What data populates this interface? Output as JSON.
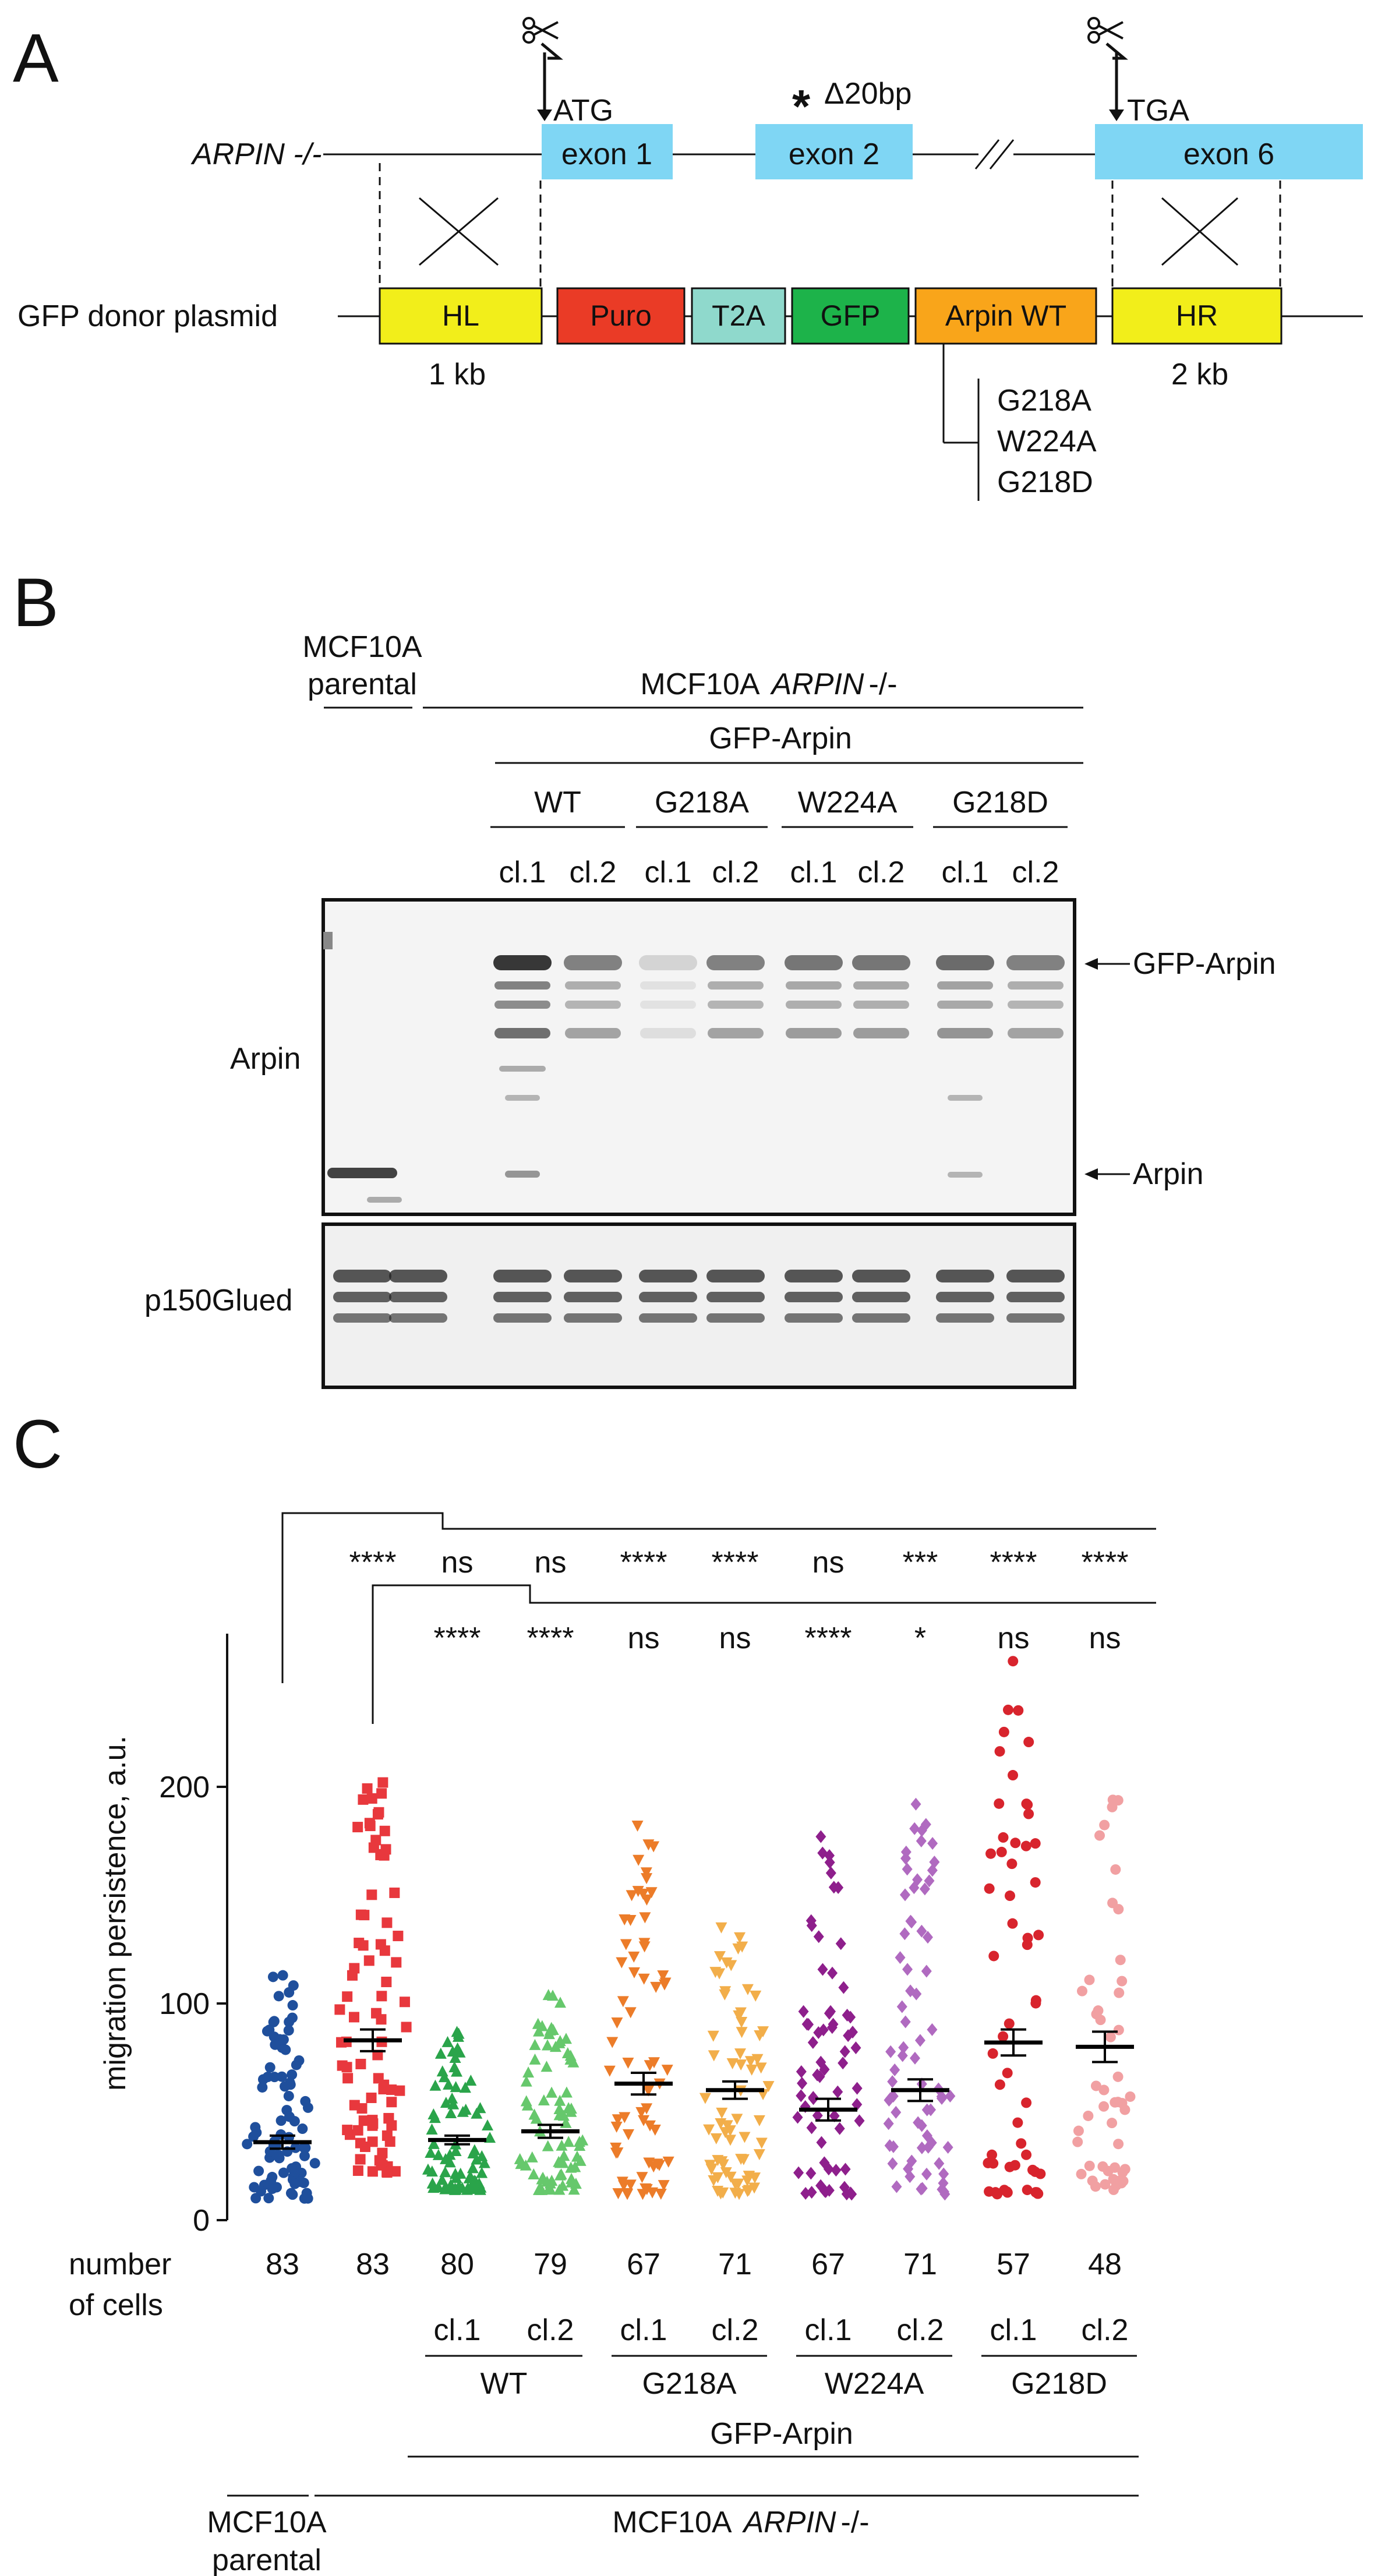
{
  "panels": {
    "a": "A",
    "b": "B",
    "c": "C"
  },
  "panel_a": {
    "gene_label": "ARPIN",
    "gene_suffix": "-/-",
    "atg": "ATG",
    "deletion": "Δ20bp",
    "tga": "TGA",
    "exons": [
      "exon 1",
      "exon 2",
      "exon 6"
    ],
    "donor_label": "GFP donor plasmid",
    "blocks": [
      "HL",
      "Puro",
      "T2A",
      "GFP",
      "Arpin WT",
      "HR"
    ],
    "block_colors": [
      "#f2ee1a",
      "#ea3b26",
      "#8fd9cc",
      "#1db34a",
      "#f9a51a",
      "#f2ee1a"
    ],
    "exon_color": "#7fd6f4",
    "hl_size": "1 kb",
    "hr_size": "2 kb",
    "mutants": [
      "G218A",
      "W224A",
      "G218D"
    ]
  },
  "panel_b": {
    "parental": [
      "MCF10A",
      "parental"
    ],
    "knockout_prefix": "MCF10A",
    "knockout_gene": "ARPIN",
    "knockout_suffix": "-/-",
    "gfp_arpin": "GFP-Arpin",
    "groups": [
      "WT",
      "G218A",
      "W224A",
      "G218D"
    ],
    "clones": [
      "cl.1",
      "cl.2",
      "cl.1",
      "cl.2",
      "cl.1",
      "cl.2",
      "cl.1",
      "cl.2"
    ],
    "blot_labels": [
      "Arpin",
      "p150Glued"
    ],
    "band_labels": [
      "GFP-Arpin",
      "Arpin"
    ]
  },
  "panel_c": {
    "sig_row1": [
      "****",
      "ns",
      "ns",
      "****",
      "****",
      "ns",
      "***",
      "****",
      "****"
    ],
    "sig_row2": [
      "****",
      "****",
      "ns",
      "ns",
      "****",
      "*",
      "ns",
      "ns"
    ],
    "number_label": [
      "number",
      "of cells"
    ],
    "cell_counts": [
      "83",
      "83",
      "80",
      "79",
      "67",
      "71",
      "67",
      "71",
      "57",
      "48"
    ],
    "clones": [
      "cl.1",
      "cl.2",
      "cl.1",
      "cl.2",
      "cl.1",
      "cl.2",
      "cl.1",
      "cl.2"
    ],
    "groups": [
      "WT",
      "G218A",
      "W224A",
      "G218D"
    ],
    "gfp_arpin": "GFP-Arpin",
    "parental": [
      "MCF10A",
      "parental"
    ],
    "knockout_prefix": "MCF10A",
    "knockout_gene": "ARPIN",
    "knockout_suffix": "-/-"
  },
  "chart_data": {
    "type": "scatter",
    "ylabel": "migration persistence, a.u.",
    "ylim": [
      0,
      270
    ],
    "yticks": [
      "0",
      "100",
      "200"
    ],
    "series": [
      {
        "color": "#1f4f9c",
        "marker": "circle",
        "n": 83,
        "mean": 36,
        "sem": 3,
        "min": 10,
        "max": 113
      },
      {
        "color": "#e8383d",
        "marker": "square",
        "n": 83,
        "mean": 83,
        "sem": 5,
        "min": 22,
        "max": 202
      },
      {
        "color": "#2aa44a",
        "marker": "triangle-up",
        "n": 80,
        "mean": 37,
        "sem": 2,
        "min": 14,
        "max": 87
      },
      {
        "color": "#66c86c",
        "marker": "triangle-up",
        "n": 79,
        "mean": 41,
        "sem": 3,
        "min": 14,
        "max": 104
      },
      {
        "color": "#ec7c29",
        "marker": "triangle-down",
        "n": 67,
        "mean": 63,
        "sem": 5,
        "min": 12,
        "max": 182
      },
      {
        "color": "#f2ae4a",
        "marker": "triangle-down",
        "n": 71,
        "mean": 60,
        "sem": 4,
        "min": 12,
        "max": 135
      },
      {
        "color": "#8e1f8c",
        "marker": "diamond",
        "n": 67,
        "mean": 51,
        "sem": 5,
        "min": 12,
        "max": 177
      },
      {
        "color": "#b06ac0",
        "marker": "diamond",
        "n": 71,
        "mean": 60,
        "sem": 5,
        "min": 12,
        "max": 192
      },
      {
        "color": "#d8242d",
        "marker": "circle",
        "n": 57,
        "mean": 82,
        "sem": 6,
        "min": 12,
        "max": 258
      },
      {
        "color": "#f1a0a2",
        "marker": "circle",
        "n": 48,
        "mean": 80,
        "sem": 7,
        "min": 14,
        "max": 194
      }
    ]
  }
}
